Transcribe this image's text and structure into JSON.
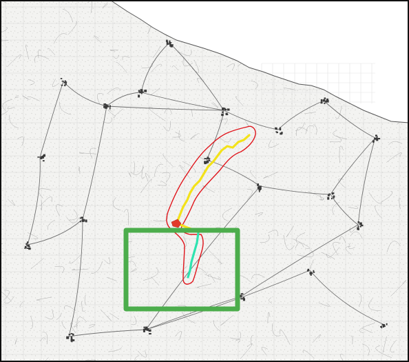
{
  "map": {
    "kind": "topographic-map-with-route-overlay",
    "colors": {
      "background": "#f3f3f1",
      "sea": "#ffffff",
      "road": "#6f6f6f",
      "minor_road": "#a9a9a9",
      "town": "#3a3a3a",
      "grid": "#d6d6d6",
      "buffer_outline": "#e0141b",
      "route_yellow": "#f3e21a",
      "route_cyan": "#2ee3b0",
      "route_red_marker": "#e23a2a",
      "study_area_box": "#4cad4c",
      "frame": "#111111"
    },
    "overlays": [
      {
        "name": "buffer-outline",
        "color": "red"
      },
      {
        "name": "route-segment-north",
        "color": "yellow"
      },
      {
        "name": "route-segment-south",
        "color": "cyan"
      },
      {
        "name": "junction-marker",
        "color": "red"
      },
      {
        "name": "study-area-rectangle",
        "color": "green"
      }
    ]
  }
}
